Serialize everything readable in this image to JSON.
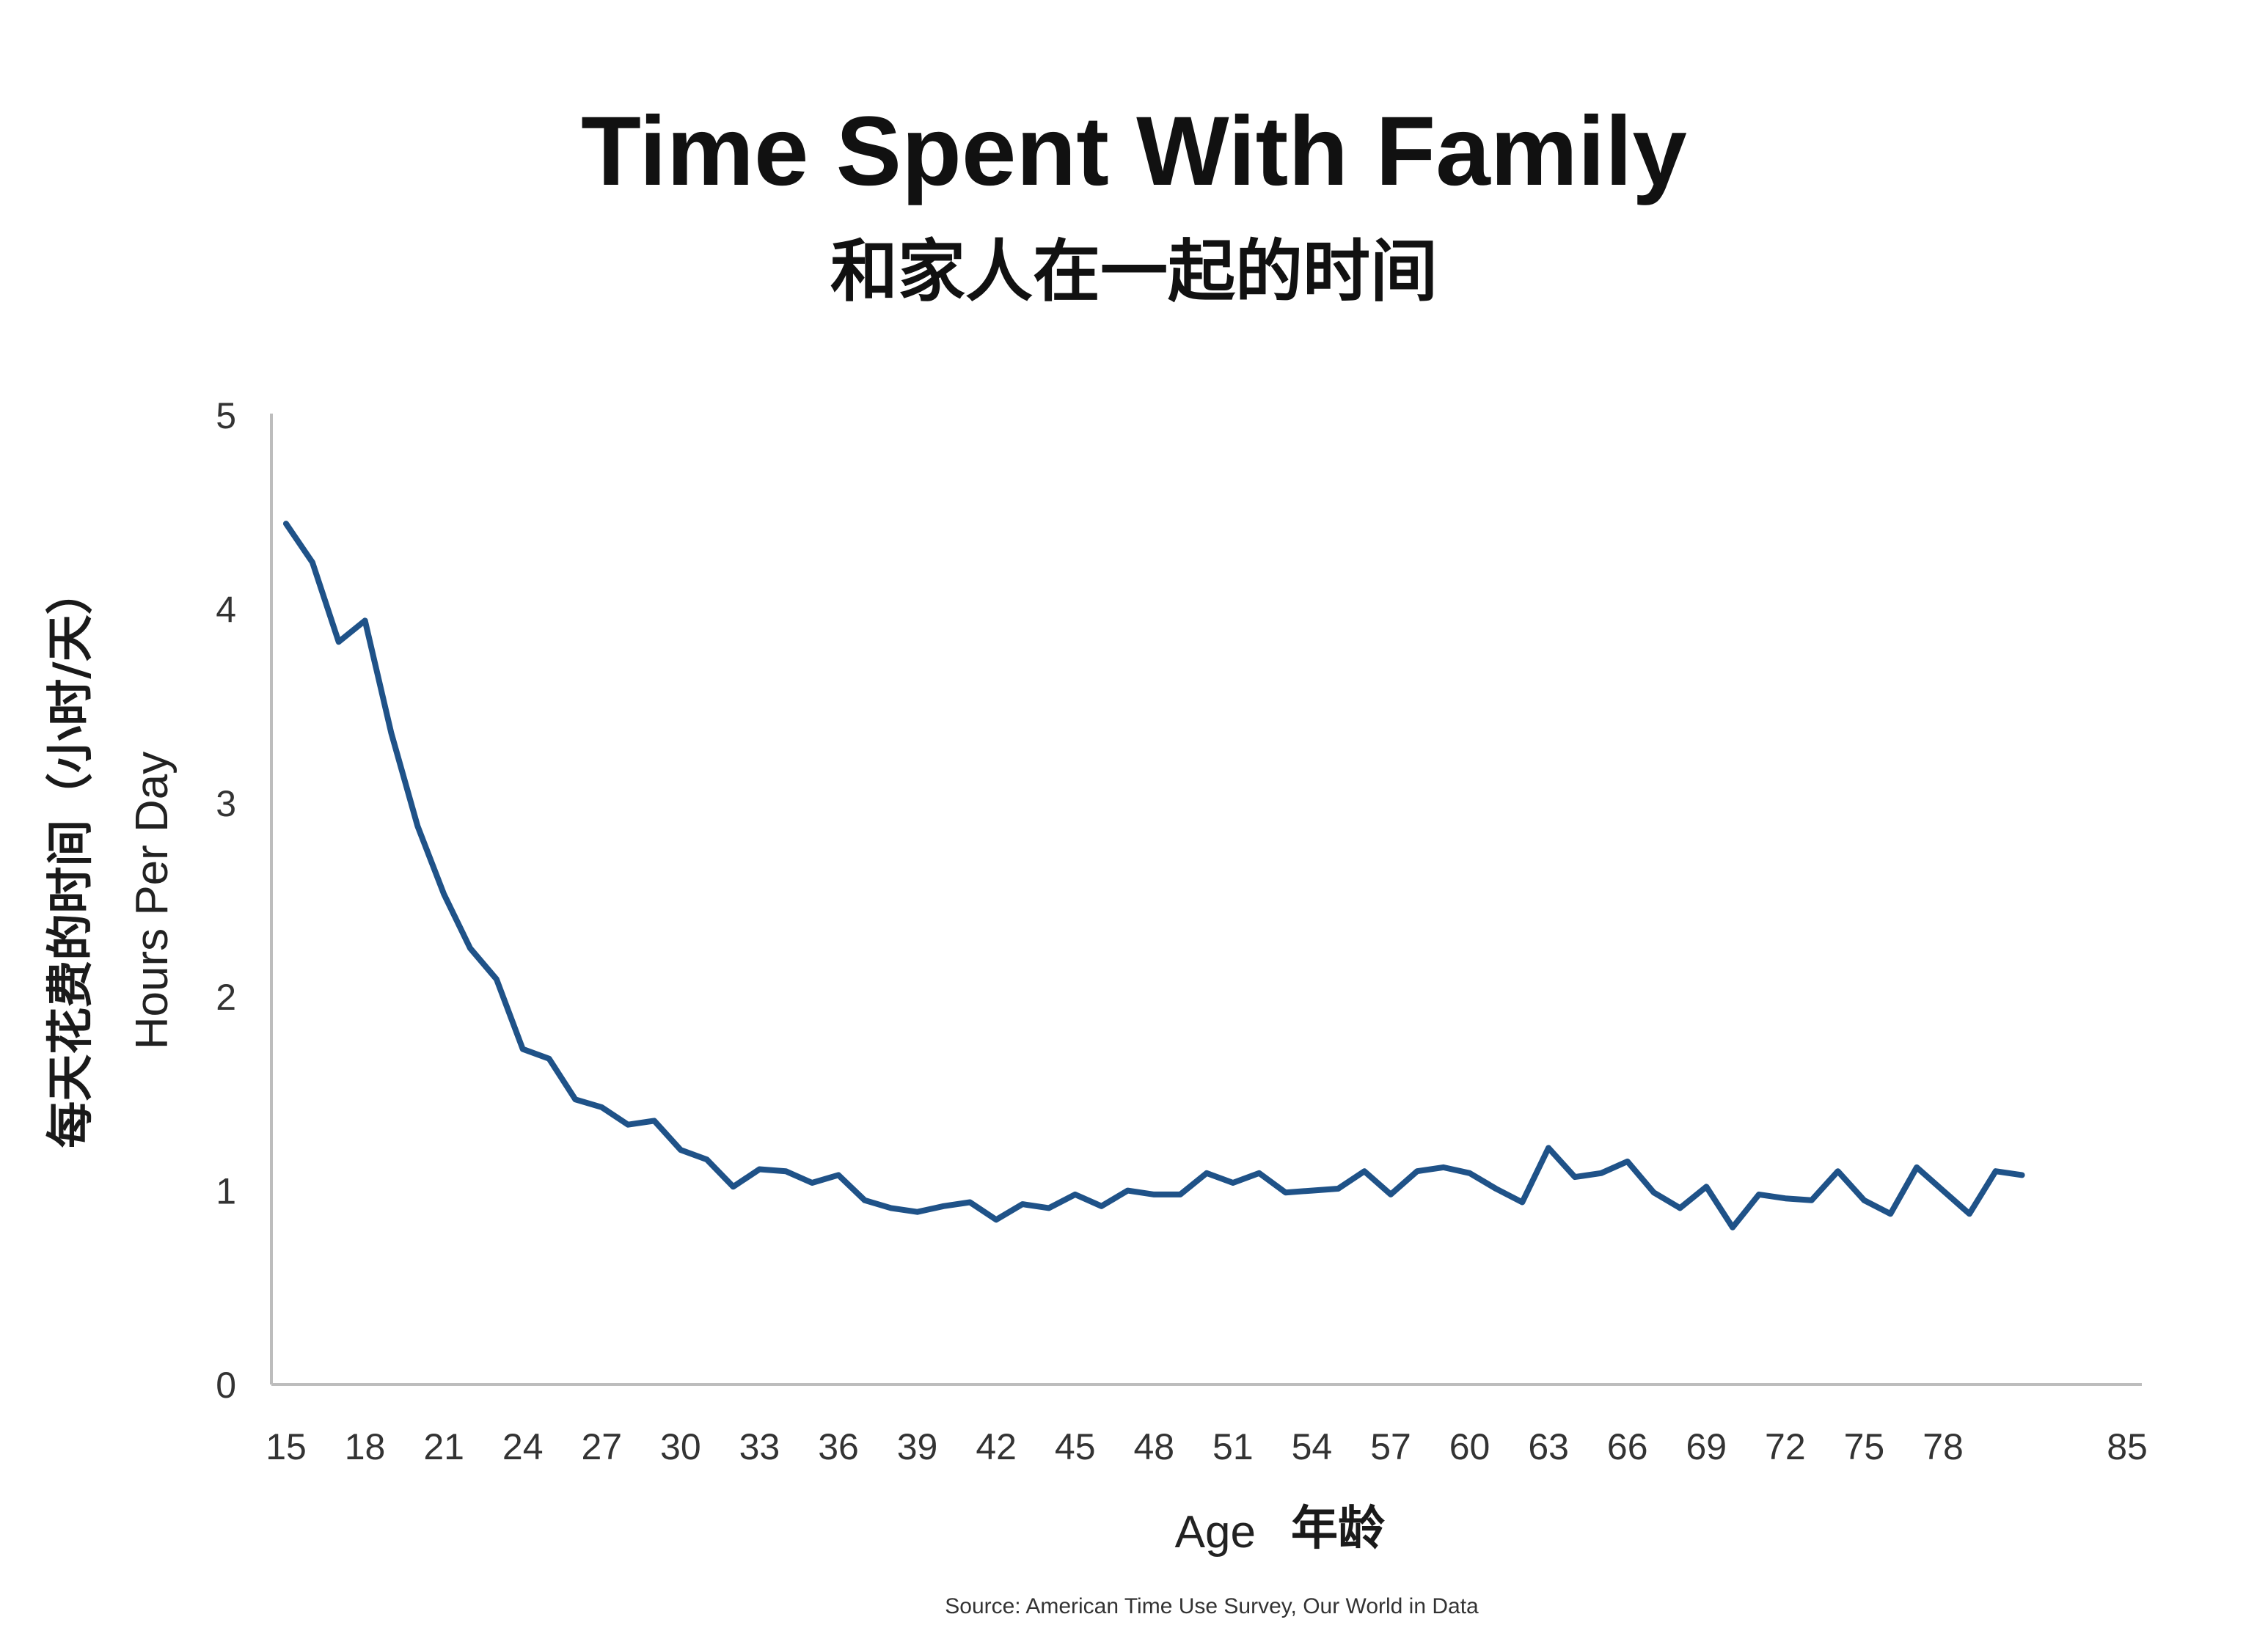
{
  "chart_data": {
    "type": "line",
    "title": "Time Spent With Family",
    "subtitle": "和家人在一起的时间",
    "xlabel": "Age",
    "xlabel_cn": "年龄",
    "ylabel": "Hours Per Day",
    "ylabel_cn": "每天花费的时间（小时/天）",
    "xlim": [
      15,
      85
    ],
    "ylim": [
      0,
      5
    ],
    "xticks": [
      15,
      18,
      21,
      24,
      27,
      30,
      33,
      36,
      39,
      42,
      45,
      48,
      51,
      54,
      57,
      60,
      63,
      66,
      69,
      72,
      75,
      78,
      85
    ],
    "yticks": [
      0,
      1,
      2,
      3,
      4,
      5
    ],
    "grid": false,
    "line_color": "#1f5288",
    "source": "Source: American Time Use Survey, Our World in Data",
    "series": [
      {
        "x": [
          15,
          16,
          17,
          18,
          19,
          20,
          21,
          22,
          23,
          24,
          25,
          26,
          27,
          28,
          29,
          30,
          31,
          32,
          33,
          34,
          35,
          36,
          37,
          38,
          39,
          40,
          41,
          42,
          43,
          44,
          45,
          46,
          47,
          48,
          49,
          50,
          51,
          52,
          53,
          54,
          55,
          56,
          57,
          58,
          59,
          60,
          61,
          62,
          63,
          64,
          65,
          66,
          67,
          68,
          69,
          70,
          71,
          72,
          73,
          74,
          75,
          76,
          77,
          78,
          79,
          80,
          81
        ],
        "y": [
          4.44,
          4.24,
          3.83,
          3.94,
          3.36,
          2.88,
          2.53,
          2.25,
          2.09,
          1.73,
          1.68,
          1.47,
          1.43,
          1.34,
          1.36,
          1.21,
          1.16,
          1.02,
          1.11,
          1.1,
          1.04,
          1.08,
          0.95,
          0.91,
          0.89,
          0.92,
          0.94,
          0.85,
          0.93,
          0.91,
          0.98,
          0.92,
          1.0,
          0.98,
          0.98,
          1.09,
          1.04,
          1.09,
          0.99,
          1.0,
          1.01,
          1.1,
          0.98,
          1.1,
          1.12,
          1.09,
          1.01,
          0.94,
          1.22,
          1.07,
          1.09,
          1.15,
          0.99,
          0.91,
          1.02,
          0.81,
          0.98,
          0.96,
          0.95,
          1.1,
          0.95,
          0.88,
          1.12,
          1.0,
          0.88,
          1.1,
          1.08
        ]
      }
    ]
  }
}
